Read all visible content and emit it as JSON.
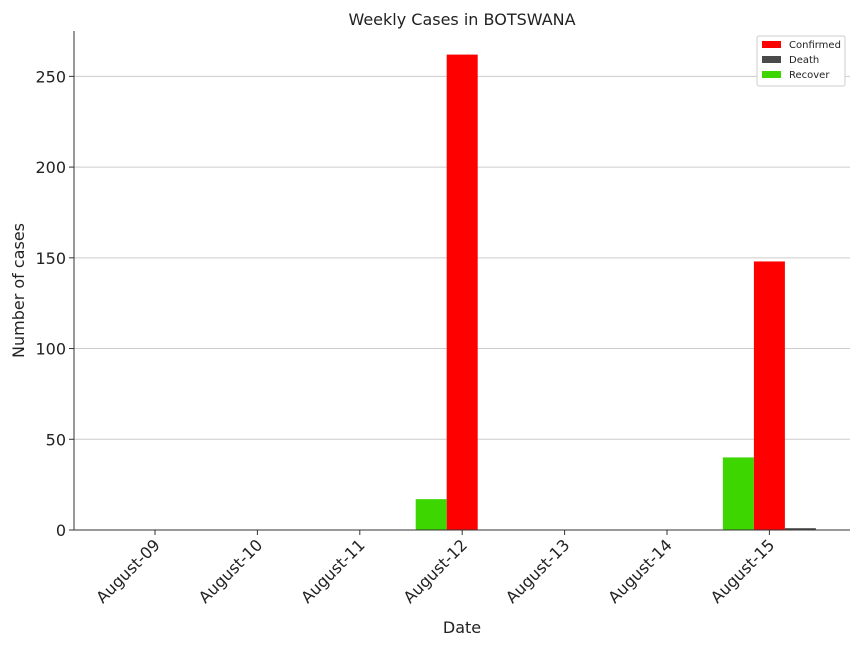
{
  "chart_data": {
    "type": "bar",
    "title": "Weekly Cases in BOTSWANA",
    "xlabel": "Date",
    "ylabel": "Number of cases",
    "categories": [
      "August-09",
      "August-10",
      "August-11",
      "August-12",
      "August-13",
      "August-14",
      "August-15"
    ],
    "series": [
      {
        "name": "Recover",
        "color": "#3ed600",
        "values": [
          0,
          0,
          0,
          17,
          0,
          0,
          40
        ]
      },
      {
        "name": "Confirmed",
        "color": "#ff0000",
        "values": [
          0,
          0,
          0,
          262,
          0,
          0,
          148
        ]
      },
      {
        "name": "Death",
        "color": "#4a4a4a",
        "values": [
          0,
          0,
          0,
          0,
          0,
          0,
          1
        ]
      }
    ],
    "legend_order": [
      "Confirmed",
      "Death",
      "Recover"
    ],
    "ylim": [
      0,
      275
    ],
    "yticks": [
      0,
      50,
      100,
      150,
      200,
      250
    ],
    "grid": "horizontal",
    "legend_position": "top-right"
  }
}
